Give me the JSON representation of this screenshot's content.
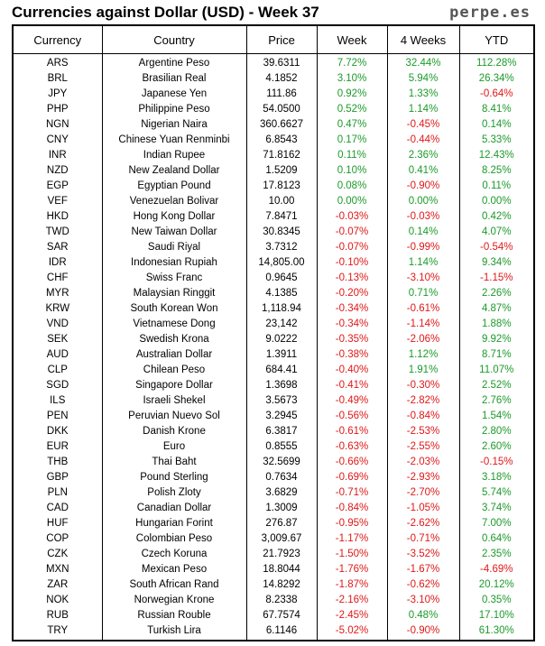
{
  "title": "Currencies against Dollar (USD) - Week 37",
  "brand": "perpe.es",
  "colors": {
    "positive": "#1c9a2a",
    "negative": "#e01818"
  },
  "headers": [
    "Currency",
    "Country",
    "Price",
    "Week",
    "4 Weeks",
    "YTD"
  ],
  "rows": [
    [
      "ARS",
      "Argentine Peso",
      "39.6311",
      "7.72%",
      "32.44%",
      "112.28%"
    ],
    [
      "BRL",
      "Brasilian Real",
      "4.1852",
      "3.10%",
      "5.94%",
      "26.34%"
    ],
    [
      "JPY",
      "Japanese Yen",
      "111.86",
      "0.92%",
      "1.33%",
      "-0.64%"
    ],
    [
      "PHP",
      "Philippine Peso",
      "54.0500",
      "0.52%",
      "1.14%",
      "8.41%"
    ],
    [
      "NGN",
      "Nigerian Naira",
      "360.6627",
      "0.47%",
      "-0.45%",
      "0.14%"
    ],
    [
      "CNY",
      "Chinese Yuan Renminbi",
      "6.8543",
      "0.17%",
      "-0.44%",
      "5.33%"
    ],
    [
      "INR",
      "Indian Rupee",
      "71.8162",
      "0.11%",
      "2.36%",
      "12.43%"
    ],
    [
      "NZD",
      "New Zealand Dollar",
      "1.5209",
      "0.10%",
      "0.41%",
      "8.25%"
    ],
    [
      "EGP",
      "Egyptian Pound",
      "17.8123",
      "0.08%",
      "-0.90%",
      "0.11%"
    ],
    [
      "VEF",
      "Venezuelan Bolivar",
      "10.00",
      "0.00%",
      "0.00%",
      "0.00%"
    ],
    [
      "HKD",
      "Hong Kong Dollar",
      "7.8471",
      "-0.03%",
      "-0.03%",
      "0.42%"
    ],
    [
      "TWD",
      "New Taiwan Dollar",
      "30.8345",
      "-0.07%",
      "0.14%",
      "4.07%"
    ],
    [
      "SAR",
      "Saudi Riyal",
      "3.7312",
      "-0.07%",
      "-0.99%",
      "-0.54%"
    ],
    [
      "IDR",
      "Indonesian Rupiah",
      "14,805.00",
      "-0.10%",
      "1.14%",
      "9.34%"
    ],
    [
      "CHF",
      "Swiss Franc",
      "0.9645",
      "-0.13%",
      "-3.10%",
      "-1.15%"
    ],
    [
      "MYR",
      "Malaysian Ringgit",
      "4.1385",
      "-0.20%",
      "0.71%",
      "2.26%"
    ],
    [
      "KRW",
      "South Korean Won",
      "1,118.94",
      "-0.34%",
      "-0.61%",
      "4.87%"
    ],
    [
      "VND",
      "Vietnamese Dong",
      "23,142",
      "-0.34%",
      "-1.14%",
      "1.88%"
    ],
    [
      "SEK",
      "Swedish Krona",
      "9.0222",
      "-0.35%",
      "-2.06%",
      "9.92%"
    ],
    [
      "AUD",
      "Australian Dollar",
      "1.3911",
      "-0.38%",
      "1.12%",
      "8.71%"
    ],
    [
      "CLP",
      "Chilean Peso",
      "684.41",
      "-0.40%",
      "1.91%",
      "11.07%"
    ],
    [
      "SGD",
      "Singapore Dollar",
      "1.3698",
      "-0.41%",
      "-0.30%",
      "2.52%"
    ],
    [
      "ILS",
      "Israeli Shekel",
      "3.5673",
      "-0.49%",
      "-2.82%",
      "2.76%"
    ],
    [
      "PEN",
      "Peruvian Nuevo Sol",
      "3.2945",
      "-0.56%",
      "-0.84%",
      "1.54%"
    ],
    [
      "DKK",
      "Danish Krone",
      "6.3817",
      "-0.61%",
      "-2.53%",
      "2.80%"
    ],
    [
      "EUR",
      "Euro",
      "0.8555",
      "-0.63%",
      "-2.55%",
      "2.60%"
    ],
    [
      "THB",
      "Thai Baht",
      "32.5699",
      "-0.66%",
      "-2.03%",
      "-0.15%"
    ],
    [
      "GBP",
      "Pound Sterling",
      "0.7634",
      "-0.69%",
      "-2.93%",
      "3.18%"
    ],
    [
      "PLN",
      "Polish Zloty",
      "3.6829",
      "-0.71%",
      "-2.70%",
      "5.74%"
    ],
    [
      "CAD",
      "Canadian Dollar",
      "1.3009",
      "-0.84%",
      "-1.05%",
      "3.74%"
    ],
    [
      "HUF",
      "Hungarian Forint",
      "276.87",
      "-0.95%",
      "-2.62%",
      "7.00%"
    ],
    [
      "COP",
      "Colombian Peso",
      "3,009.67",
      "-1.17%",
      "-0.71%",
      "0.64%"
    ],
    [
      "CZK",
      "Czech Koruna",
      "21.7923",
      "-1.50%",
      "-3.52%",
      "2.35%"
    ],
    [
      "MXN",
      "Mexican Peso",
      "18.8044",
      "-1.76%",
      "-1.67%",
      "-4.69%"
    ],
    [
      "ZAR",
      "South African Rand",
      "14.8292",
      "-1.87%",
      "-0.62%",
      "20.12%"
    ],
    [
      "NOK",
      "Norwegian Krone",
      "8.2338",
      "-2.16%",
      "-3.10%",
      "0.35%"
    ],
    [
      "RUB",
      "Russian Rouble",
      "67.7574",
      "-2.45%",
      "0.48%",
      "17.10%"
    ],
    [
      "TRY",
      "Turkish Lira",
      "6.1146",
      "-5.02%",
      "-0.90%",
      "61.30%"
    ]
  ]
}
